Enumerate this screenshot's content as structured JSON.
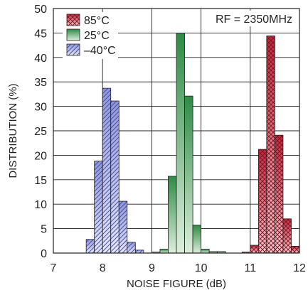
{
  "chart_data": {
    "type": "bar",
    "title": "",
    "xlabel": "NOISE FIGURE (dB)",
    "ylabel": "DISTRIBUTION (%)",
    "xlim": [
      7,
      12
    ],
    "ylim": [
      0,
      50
    ],
    "x_ticks": [
      "7",
      "8",
      "9",
      "10",
      "11",
      "12"
    ],
    "y_ticks": [
      "0",
      "5",
      "10",
      "15",
      "20",
      "25",
      "30",
      "35",
      "40",
      "45",
      "50"
    ],
    "bin_width_db": 0.1667,
    "annotation": "RF = 2350MHz",
    "grid": true,
    "legend_position": "top-left",
    "series": [
      {
        "name": "85°C",
        "color": "#c0283a",
        "pattern": "crosshatch",
        "bins": [
          {
            "start": 10.833,
            "value": 0.2
          },
          {
            "start": 11.0,
            "value": 1.6
          },
          {
            "start": 11.167,
            "value": 21.2
          },
          {
            "start": 11.333,
            "value": 44.4
          },
          {
            "start": 11.5,
            "value": 24.1
          },
          {
            "start": 11.667,
            "value": 7.0
          },
          {
            "start": 11.833,
            "value": 1.4
          }
        ]
      },
      {
        "name": "25°C",
        "color": "#2e8b45",
        "pattern": "gradient",
        "bins": [
          {
            "start": 9.0,
            "value": 0.2
          },
          {
            "start": 9.167,
            "value": 0.8
          },
          {
            "start": 9.333,
            "value": 15.7
          },
          {
            "start": 9.5,
            "value": 45.0
          },
          {
            "start": 9.667,
            "value": 32.1
          },
          {
            "start": 9.833,
            "value": 5.7
          },
          {
            "start": 10.0,
            "value": 0.8
          },
          {
            "start": 10.167,
            "value": 0.3
          },
          {
            "start": 10.333,
            "value": 0.3
          }
        ]
      },
      {
        "name": "–40°C",
        "color": "#5a64c0",
        "pattern": "hatch",
        "bins": [
          {
            "start": 7.667,
            "value": 2.8
          },
          {
            "start": 7.833,
            "value": 18.8
          },
          {
            "start": 8.0,
            "value": 33.7
          },
          {
            "start": 8.167,
            "value": 31.1
          },
          {
            "start": 8.333,
            "value": 10.6
          },
          {
            "start": 8.5,
            "value": 2.2
          },
          {
            "start": 8.667,
            "value": 0.6
          }
        ]
      }
    ]
  }
}
